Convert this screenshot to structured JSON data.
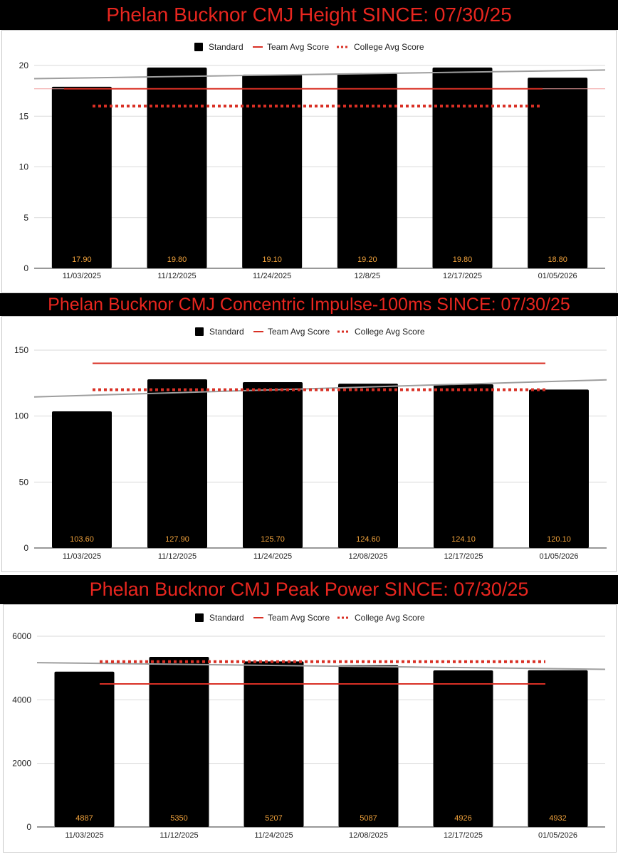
{
  "colors": {
    "bar": "#000000",
    "bar_label": "#f0a23c",
    "team_avg": "#d93025",
    "college_avg": "#d93025",
    "trendline": "#9e9e9e",
    "title_text": "#e8261f",
    "gridline": "#d9d9d9"
  },
  "legend": {
    "standard": "Standard",
    "team": "Team Avg Score",
    "college": "College Avg Score"
  },
  "chart_data": [
    {
      "type": "bar",
      "title": "Phelan Bucknor CMJ Height SINCE: 07/30/25",
      "legend_labels": [
        "Standard",
        "Team Avg Score",
        "College Avg Score"
      ],
      "categories": [
        "11/03/2025",
        "11/12/2025",
        "11/24/2025",
        "12/8/25",
        "12/17/2025",
        "01/05/2026"
      ],
      "values": [
        17.9,
        19.8,
        19.1,
        19.2,
        19.8,
        18.8
      ],
      "value_labels": [
        "17.90",
        "19.80",
        "19.10",
        "19.20",
        "19.80",
        "18.80"
      ],
      "team_avg": 17.7,
      "college_avg": 16,
      "trendline": [
        18.7,
        19.55
      ],
      "ylim": [
        0,
        20
      ],
      "yticks": [
        "0",
        "5",
        "10",
        "15",
        "20"
      ],
      "grid": true,
      "legend_position": "top"
    },
    {
      "type": "bar",
      "title": "Phelan Bucknor CMJ Concentric Impulse-100ms SINCE: 07/30/25",
      "legend_labels": [
        "Standard",
        "Team Avg Score",
        "College  Avg Score"
      ],
      "categories": [
        "11/03/2025",
        "11/12/2025",
        "11/24/2025",
        "12/08/2025",
        "12/17/2025",
        "01/05/2026"
      ],
      "values": [
        103.6,
        127.9,
        125.7,
        124.6,
        124.1,
        120.1
      ],
      "value_labels": [
        "103.60",
        "127.90",
        "125.70",
        "124.60",
        "124.10",
        "120.10"
      ],
      "team_avg": 140,
      "college_avg": 120,
      "trendline": [
        114.5,
        127.5
      ],
      "ylim": [
        0,
        150
      ],
      "yticks": [
        "0",
        "50",
        "100",
        "150"
      ],
      "grid": true,
      "legend_position": "top"
    },
    {
      "type": "bar",
      "title": "Phelan Bucknor CMJ Peak Power SINCE: 07/30/25",
      "legend_labels": [
        "Standard",
        "Team Avg Score",
        "College Avg Score"
      ],
      "categories": [
        "11/03/2025",
        "11/12/2025",
        "11/24/2025",
        "12/08/2025",
        "12/17/2025",
        "01/05/2026"
      ],
      "values": [
        4887,
        5350,
        5207,
        5087,
        4926,
        4932
      ],
      "value_labels": [
        "4887",
        "5350",
        "5207",
        "5087",
        "4926",
        "4932"
      ],
      "team_avg": 4500,
      "college_avg": 5200,
      "trendline": [
        5170,
        4960
      ],
      "ylim": [
        0,
        6000
      ],
      "yticks": [
        "0",
        "2000",
        "4000",
        "6000"
      ],
      "grid": true,
      "legend_position": "top"
    }
  ]
}
